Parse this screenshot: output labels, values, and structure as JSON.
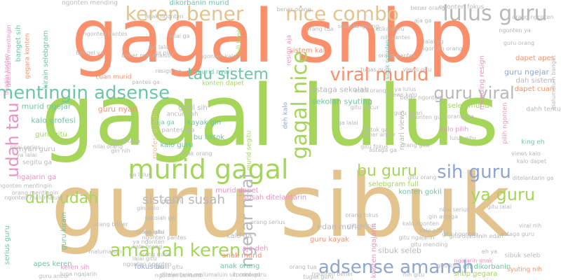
{
  "palette": {
    "orange": "#f9906b",
    "green": "#a5d65a",
    "tan": "#e3c48f",
    "teal": "#6cc6a5",
    "grey": "#b8b8b8",
    "pink": "#ea91c3",
    "blue": "#8fa5cf"
  },
  "words": [
    {
      "text": "guru sibuk",
      "color": "tan"
    },
    {
      "text": "gagal lulus",
      "color": "green"
    },
    {
      "text": "gagal snbp",
      "color": "orange"
    },
    {
      "text": "lulus guru",
      "color": "grey"
    },
    {
      "text": "keren bener",
      "color": "tan"
    },
    {
      "text": "nice combo",
      "color": "tan"
    },
    {
      "text": "mentingin adsense",
      "color": "teal"
    },
    {
      "text": "viral murid",
      "color": "orange"
    },
    {
      "text": "tau sistem",
      "color": "teal"
    },
    {
      "text": "guru viral",
      "color": "grey"
    },
    {
      "text": "murid gagal",
      "color": "green"
    },
    {
      "text": "sih guru",
      "color": "blue"
    },
    {
      "text": "ya guru",
      "color": "green"
    },
    {
      "text": "amanah keren",
      "color": "green"
    },
    {
      "text": "adsense amanah",
      "color": "blue"
    },
    {
      "text": "duh udah",
      "color": "green"
    },
    {
      "text": "sistem susah",
      "color": "grey"
    },
    {
      "text": "udah tau",
      "color": "pink"
    },
    {
      "text": "gagal nice",
      "color": "green"
    },
    {
      "text": "ngejar nilai",
      "color": "grey"
    },
    {
      "text": "bu guru",
      "color": "green"
    },
    {
      "text": "sibuk seleb",
      "color": "grey"
    },
    {
      "text": "murid ngejar",
      "color": "teal"
    },
    {
      "text": "guru nyari",
      "color": "orange"
    },
    {
      "text": "kalo profesi",
      "color": "teal"
    },
    {
      "text": "guru gitu",
      "color": "green"
    },
    {
      "text": "astaga sekolah",
      "color": "grey"
    },
    {
      "text": "sekolah syuting",
      "color": "teal"
    },
    {
      "text": "dapet apes",
      "color": "orange"
    },
    {
      "text": "guru ngejar",
      "color": "blue"
    },
    {
      "text": "dah sistem",
      "color": "grey"
    },
    {
      "text": "dahh tentu",
      "color": "grey"
    },
    {
      "text": "konten dapet",
      "color": "green"
    },
    {
      "text": "cuan murid",
      "color": "orange"
    },
    {
      "text": "murid nyari",
      "color": "teal"
    },
    {
      "text": "sistem kalo",
      "color": "orange"
    },
    {
      "text": "dikorbanin murid",
      "color": "teal"
    },
    {
      "text": "ngonten mending",
      "color": "grey"
    },
    {
      "text": "ngonten fokus",
      "color": "grey"
    },
    {
      "text": "ngonten pantes",
      "color": "grey"
    },
    {
      "text": "kirain selebgram",
      "color": "teal"
    },
    {
      "text": "banget sih",
      "color": "teal"
    },
    {
      "text": "gegara konten",
      "color": "orange"
    },
    {
      "text": "ditelantarin mentingin",
      "color": "pink"
    },
    {
      "text": "guru kirain",
      "color": "teal"
    },
    {
      "text": "seleb murid",
      "color": "green"
    },
    {
      "text": "kayak gin",
      "color": "teal"
    },
    {
      "text": "gokil sih",
      "color": "grey"
    },
    {
      "text": "ancur dah",
      "color": "grey"
    },
    {
      "text": "aja ga",
      "color": "teal"
    },
    {
      "text": "bu tiktok",
      "color": "teal"
    },
    {
      "text": "pantes aja",
      "color": "grey"
    },
    {
      "text": "kalo guru",
      "color": "teal"
    },
    {
      "text": "nyari guru",
      "color": "grey"
    },
    {
      "text": "segitu ga",
      "color": "grey"
    },
    {
      "text": "edan murid",
      "color": "grey"
    },
    {
      "text": "murid dapet",
      "color": "pink"
    },
    {
      "text": "ngajarin ga",
      "color": "pink"
    },
    {
      "text": "susah ditelantarin",
      "color": "pink"
    },
    {
      "text": "selebgram full",
      "color": "green"
    },
    {
      "text": "konten gokil",
      "color": "teal"
    },
    {
      "text": "kalo ga",
      "color": "grey"
    },
    {
      "text": "aja deh",
      "color": "pink"
    },
    {
      "text": "anak murid",
      "color": "orange"
    },
    {
      "text": "anak orang",
      "color": "teal"
    },
    {
      "text": "guru kayak",
      "color": "orange"
    },
    {
      "text": "sibuk seleb",
      "color": "grey"
    },
    {
      "text": "eh dikorbanin",
      "color": "teal"
    },
    {
      "text": "snbp gegara",
      "color": "green"
    },
    {
      "text": "syuting nih",
      "color": "orange"
    },
    {
      "text": "fokus bu",
      "color": "blue"
    },
    {
      "text": "keren sih",
      "color": "pink"
    },
    {
      "text": "apes keren",
      "color": "teal"
    },
    {
      "text": "serius guru",
      "color": "teal"
    },
    {
      "text": "king eh",
      "color": "teal"
    },
    {
      "text": "views kalo",
      "color": "grey"
    },
    {
      "text": "pilih ngonten",
      "color": "pink"
    },
    {
      "text": "kalo pilih",
      "color": "pink"
    },
    {
      "text": "nyari views",
      "color": "grey"
    },
    {
      "text": "konten ngajarin",
      "color": "pink"
    },
    {
      "text": "deh kalo",
      "color": "blue"
    },
    {
      "text": "murid segitu",
      "color": "green"
    },
    {
      "text": "profesi dijadiin",
      "color": "tan"
    },
    {
      "text": "full time",
      "color": "green"
    },
    {
      "text": "dapet cuan",
      "color": "orange"
    },
    {
      "text": "sibuk ngonten",
      "color": "teal"
    },
    {
      "text": "mending resign",
      "color": "pink"
    },
    {
      "text": "resign aja",
      "color": "pink"
    },
    {
      "text": "dijadiin konten",
      "color": "pink"
    },
    {
      "text": "ngajarin anak",
      "color": "pink"
    },
    {
      "text": "gin astaga",
      "color": "grey"
    },
    {
      "text": "nih gitu",
      "color": "grey"
    },
    {
      "text": "malumaluin banget",
      "color": "grey"
    },
    {
      "text": "malumaluin",
      "color": "grey"
    },
    {
      "text": "orang tua",
      "color": "grey"
    },
    {
      "text": "bener orang",
      "color": "grey"
    },
    {
      "text": "gitu ancur",
      "color": "grey"
    },
    {
      "text": "orang bener",
      "color": "grey"
    },
    {
      "text": "ngonten content",
      "color": "grey"
    },
    {
      "text": "snbp langsung",
      "color": "grey"
    },
    {
      "text": "orang serius",
      "color": "grey"
    },
    {
      "text": "nilai serius",
      "color": "grey"
    },
    {
      "text": "ngonten malumaluin",
      "color": "grey"
    },
    {
      "text": "ditelantarin malumaluin sih content",
      "color": "grey"
    },
    {
      "text": "lupa ngajarin",
      "color": "grey"
    },
    {
      "text": "combo guru",
      "color": "grey"
    },
    {
      "text": "kalo orang",
      "color": "grey"
    },
    {
      "text": "ngonten kalo",
      "color": "grey"
    },
    {
      "text": "gitu mending",
      "color": "grey"
    },
    {
      "text": "astaga guru",
      "color": "grey"
    },
    {
      "text": "tiktok ga",
      "color": "grey"
    },
    {
      "text": "ga pikir",
      "color": "grey"
    },
    {
      "text": "lalai gitu",
      "color": "grey"
    },
    {
      "text": "orang gitu",
      "color": "grey"
    },
    {
      "text": "guru ancur",
      "color": "grey"
    },
    {
      "text": "nih edan",
      "color": "grey"
    },
    {
      "text": "bener malumaluin",
      "color": "grey"
    },
    {
      "text": "aja ga",
      "color": "grey"
    },
    {
      "text": "gitu fokus",
      "color": "grey"
    },
    {
      "text": "sekolah ga",
      "color": "grey"
    },
    {
      "text": "lalai ga",
      "color": "grey"
    },
    {
      "text": "ga lalai",
      "color": "grey"
    },
    {
      "text": "gin kalo",
      "color": "grey"
    },
    {
      "text": "bangel ya",
      "color": "grey"
    },
    {
      "text": "ngonten pantes",
      "color": "grey"
    },
    {
      "text": "ngonten guru",
      "color": "grey"
    },
    {
      "text": "kalo dapet",
      "color": "grey"
    },
    {
      "text": "bener ancur",
      "color": "grey"
    },
    {
      "text": "orang pantes",
      "color": "grey"
    },
    {
      "text": "ngonten ngonten",
      "color": "grey"
    },
    {
      "text": "ngonten mentingin",
      "color": "grey"
    },
    {
      "text": "orang mentingin",
      "color": "grey"
    },
    {
      "text": "ya lalai",
      "color": "grey"
    },
    {
      "text": "anak orang",
      "color": "grey"
    },
    {
      "text": "resign ya",
      "color": "grey"
    },
    {
      "text": "orang fokus",
      "color": "grey"
    },
    {
      "text": "gitu ancur",
      "color": "grey"
    },
    {
      "text": "etika guru",
      "color": "grey"
    },
    {
      "text": "ga lalai",
      "color": "grey"
    },
    {
      "text": "views gitu",
      "color": "grey"
    },
    {
      "text": "viral nih",
      "color": "grey"
    },
    {
      "text": "tugas guru",
      "color": "grey"
    },
    {
      "text": "lulus gitu",
      "color": "grey"
    },
    {
      "text": "orang aja",
      "color": "grey"
    },
    {
      "text": "astaga ga",
      "color": "grey"
    },
    {
      "text": "guru nyari",
      "color": "grey"
    },
    {
      "text": "gin nih",
      "color": "grey"
    },
    {
      "text": "nilai orang",
      "color": "grey"
    },
    {
      "text": "ga lulus",
      "color": "grey"
    },
    {
      "text": "ga lalai",
      "color": "grey"
    },
    {
      "text": "kalo ngonten",
      "color": "grey"
    },
    {
      "text": "bener orang",
      "color": "grey"
    },
    {
      "text": "gitu ngonten",
      "color": "grey"
    },
    {
      "text": "ngonten ya",
      "color": "grey"
    },
    {
      "text": "guru orang",
      "color": "grey"
    },
    {
      "text": "pantes ga",
      "color": "grey"
    },
    {
      "text": "ga guru",
      "color": "grey"
    },
    {
      "text": "nih pantes",
      "color": "grey"
    },
    {
      "text": "gitu kalo",
      "color": "grey"
    },
    {
      "text": "bener ngonten",
      "color": "grey"
    },
    {
      "text": "orang ngonten",
      "color": "grey"
    },
    {
      "text": "gitu dijadiin",
      "color": "grey"
    },
    {
      "text": "ya ngonten",
      "color": "grey"
    },
    {
      "text": "orang guru",
      "color": "grey"
    },
    {
      "text": "bener gitu",
      "color": "grey"
    },
    {
      "text": "gitu orang",
      "color": "grey"
    },
    {
      "text": "orang tua",
      "color": "grey"
    },
    {
      "text": "tugas guru",
      "color": "grey"
    },
    {
      "text": "ngonten bener",
      "color": "grey"
    },
    {
      "text": "ditelantarin ga",
      "color": "grey"
    },
    {
      "text": "gitu lalai",
      "color": "grey"
    },
    {
      "text": "eh ya",
      "color": "grey"
    },
    {
      "text": "lalai yg",
      "color": "grey"
    },
    {
      "text": "ngonten orang",
      "color": "grey"
    },
    {
      "text": "anak ngonten",
      "color": "grey"
    },
    {
      "text": "ya lulus",
      "color": "grey"
    },
    {
      "text": "views kalo",
      "color": "grey"
    },
    {
      "text": "orang gitu",
      "color": "grey"
    },
    {
      "text": "etika orang",
      "color": "grey"
    },
    {
      "text": "nilai serius",
      "color": "grey"
    },
    {
      "text": "gin astaga",
      "color": "grey"
    },
    {
      "text": "kalo pilih",
      "color": "grey"
    },
    {
      "text": "gitu ngajarin",
      "color": "grey"
    },
    {
      "text": "orang malumaluin",
      "color": "grey"
    }
  ]
}
